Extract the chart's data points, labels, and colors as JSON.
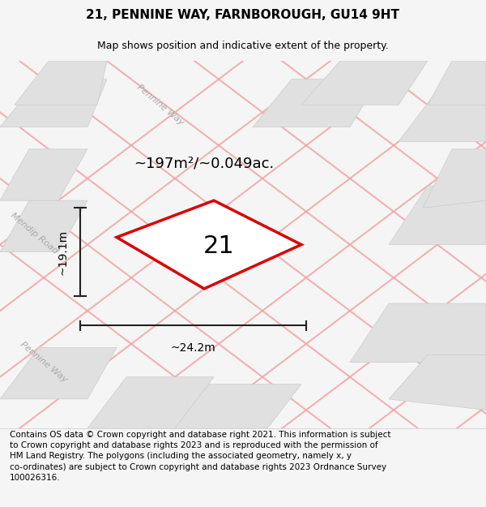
{
  "title": "21, PENNINE WAY, FARNBOROUGH, GU14 9HT",
  "subtitle": "Map shows position and indicative extent of the property.",
  "footer": "Contains OS data © Crown copyright and database right 2021. This information is subject to Crown copyright and database rights 2023 and is reproduced with the permission of HM Land Registry. The polygons (including the associated geometry, namely x, y co-ordinates) are subject to Crown copyright and database rights 2023 Ordnance Survey 100026316.",
  "area_label": "~197m²/~0.049ac.",
  "width_label": "~24.2m",
  "height_label": "~19.1m",
  "plot_number": "21",
  "bg_color": "#f5f5f5",
  "map_bg": "#ffffff",
  "road_fill": "#e8e8e8",
  "road_stroke": "#f0a0a0",
  "plot_stroke": "#dd0000",
  "plot_fill": "#ffffff",
  "dim_line_color": "#222222",
  "title_fontsize": 11,
  "subtitle_fontsize": 9,
  "footer_fontsize": 7.5,
  "label_fontsize": 13,
  "number_fontsize": 22
}
